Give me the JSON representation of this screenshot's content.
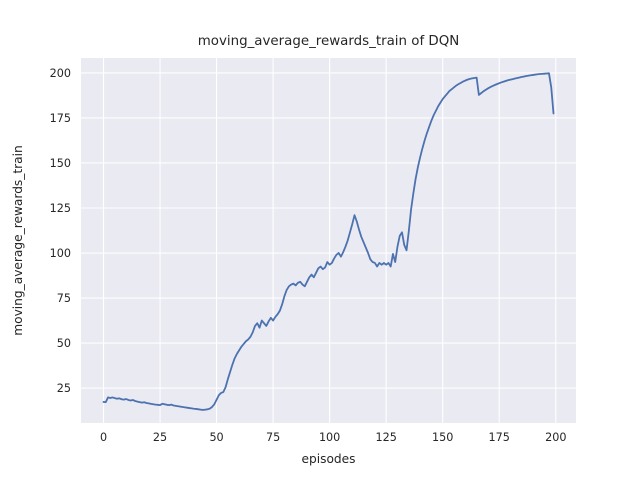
{
  "figure": {
    "background": "#FFFFFF"
  },
  "chart_data": {
    "type": "line",
    "title": "moving_average_rewards_train of DQN",
    "xlabel": "episodes",
    "ylabel": "moving_average_rewards_train",
    "x_ticks": [
      0,
      25,
      50,
      75,
      100,
      125,
      150,
      175,
      200
    ],
    "y_ticks": [
      25,
      50,
      75,
      100,
      125,
      150,
      175,
      200
    ],
    "xlim": [
      -9.95,
      208.95
    ],
    "ylim": [
      5.6,
      208.3
    ],
    "grid": true,
    "legend_position": "none",
    "style": {
      "plot_background": "#EAEAF2",
      "grid_color": "#FFFFFF",
      "line_color": "#4C72B0",
      "text_color": "#262626",
      "line_width": 1.8,
      "grid_width": 1.1
    },
    "series": [
      {
        "name": "moving_average_rewards_train",
        "x0": 0,
        "dx": 1,
        "y": [
          17.3,
          17.2,
          19.8,
          19.5,
          19.8,
          19.4,
          19.1,
          19.3,
          18.8,
          18.6,
          18.9,
          18.4,
          18.1,
          18.4,
          17.8,
          17.5,
          17.2,
          16.9,
          17.1,
          16.7,
          16.5,
          16.2,
          16.0,
          15.8,
          15.7,
          15.5,
          16.3,
          16.0,
          15.7,
          15.5,
          15.8,
          15.3,
          15.1,
          14.9,
          14.7,
          14.5,
          14.3,
          14.1,
          13.9,
          13.7,
          13.5,
          13.4,
          13.2,
          13.0,
          12.9,
          13.0,
          13.2,
          13.6,
          14.5,
          16.0,
          18.5,
          21.0,
          22.3,
          22.8,
          25.5,
          30.0,
          34.0,
          38.0,
          41.5,
          44.0,
          46.0,
          48.0,
          49.5,
          51.0,
          52.0,
          53.5,
          56.0,
          59.5,
          61.0,
          58.5,
          62.5,
          61.0,
          59.5,
          62.0,
          64.0,
          62.5,
          64.5,
          66.0,
          68.0,
          71.5,
          76.0,
          79.5,
          81.5,
          82.5,
          83.0,
          82.0,
          83.5,
          84.0,
          82.5,
          81.5,
          84.0,
          86.5,
          88.0,
          86.5,
          89.0,
          91.5,
          92.5,
          91.0,
          92.0,
          95.0,
          93.5,
          94.5,
          97.0,
          99.0,
          100.0,
          98.0,
          100.5,
          103.5,
          107.0,
          111.5,
          116.0,
          121.0,
          117.5,
          113.0,
          109.0,
          106.0,
          103.0,
          100.0,
          96.5,
          95.0,
          94.5,
          92.5,
          94.5,
          93.5,
          94.5,
          93.5,
          94.5,
          92.5,
          99.5,
          95.0,
          103.5,
          109.5,
          111.5,
          104.5,
          101.5,
          112.0,
          124.0,
          133.0,
          141.0,
          147.5,
          153.0,
          158.0,
          162.5,
          166.5,
          170.0,
          173.5,
          176.5,
          179.0,
          181.5,
          183.5,
          185.5,
          187.0,
          188.5,
          190.0,
          191.0,
          192.0,
          193.0,
          193.8,
          194.5,
          195.2,
          195.8,
          196.3,
          196.7,
          197.0,
          197.2,
          197.4,
          187.8,
          188.8,
          189.8,
          190.6,
          191.4,
          192.1,
          192.7,
          193.3,
          193.8,
          194.3,
          194.8,
          195.2,
          195.6,
          196.0,
          196.3,
          196.6,
          196.9,
          197.2,
          197.5,
          197.8,
          198.0,
          198.3,
          198.5,
          198.7,
          198.9,
          199.1,
          199.3,
          199.4,
          199.5,
          199.6,
          199.7,
          199.8,
          192.0,
          177.5
        ]
      }
    ]
  }
}
